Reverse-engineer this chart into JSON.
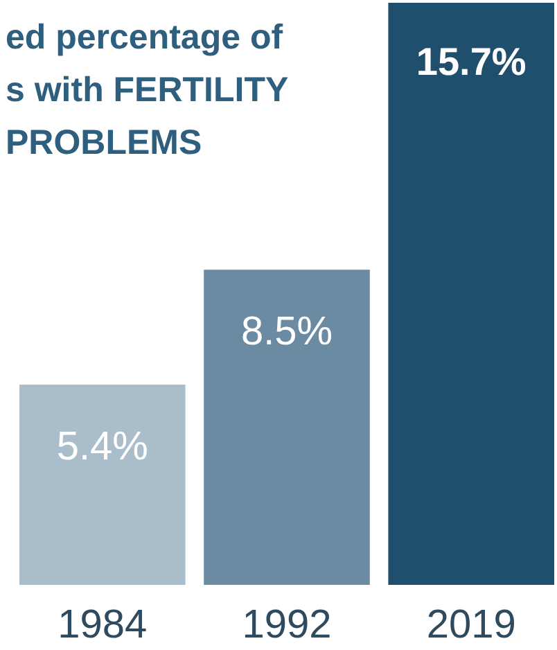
{
  "chart_data": {
    "type": "bar",
    "title": "ed percentage of\ns with FERTILITY\nPROBLEMS",
    "categories": [
      "1984",
      "1992",
      "2019"
    ],
    "values": [
      5.4,
      8.5,
      15.7
    ],
    "value_labels": [
      "5.4%",
      "8.5%",
      "15.7%"
    ],
    "colors": [
      "#a9bdcb",
      "#6b8ba2",
      "#1f4f6c"
    ]
  }
}
